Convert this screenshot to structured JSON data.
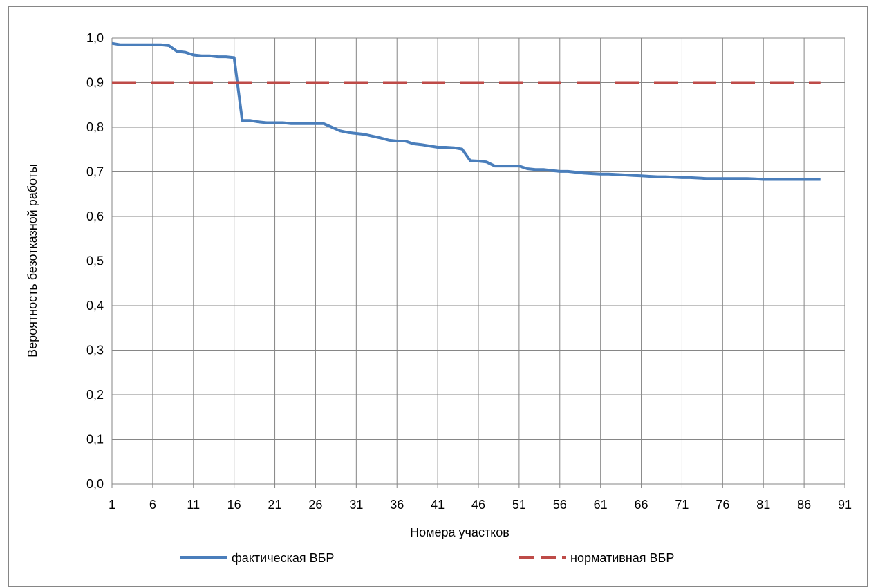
{
  "chart_data": {
    "type": "line",
    "xlabel": "Номера участков",
    "ylabel": "Вероятность безотказной работы",
    "xlim": [
      1,
      91
    ],
    "ylim": [
      0,
      1
    ],
    "grid": true,
    "legend_position": "bottom",
    "x_ticks": [
      "1",
      "6",
      "11",
      "16",
      "21",
      "26",
      "31",
      "36",
      "41",
      "46",
      "51",
      "56",
      "61",
      "66",
      "71",
      "76",
      "81",
      "86",
      "91"
    ],
    "y_ticks": [
      "0,0",
      "0,1",
      "0,2",
      "0,3",
      "0,4",
      "0,5",
      "0,6",
      "0,7",
      "0,8",
      "0,9",
      "1,0"
    ],
    "series": [
      {
        "name": "фактическая ВБР",
        "color": "#4a7ebb",
        "style": "solid",
        "x": [
          1,
          2,
          3,
          4,
          5,
          6,
          7,
          8,
          9,
          10,
          11,
          12,
          13,
          14,
          15,
          16,
          17,
          18,
          19,
          20,
          21,
          22,
          23,
          24,
          25,
          26,
          27,
          28,
          29,
          30,
          31,
          32,
          33,
          34,
          35,
          36,
          37,
          38,
          39,
          40,
          41,
          42,
          43,
          44,
          45,
          46,
          47,
          48,
          49,
          50,
          51,
          52,
          53,
          54,
          55,
          56,
          57,
          58,
          59,
          60,
          61,
          62,
          63,
          64,
          65,
          66,
          67,
          68,
          69,
          70,
          71,
          72,
          73,
          74,
          75,
          76,
          77,
          78,
          79,
          80,
          81,
          82,
          83,
          84,
          85,
          86,
          87,
          88
        ],
        "values": [
          0.988,
          0.985,
          0.985,
          0.985,
          0.985,
          0.985,
          0.985,
          0.983,
          0.97,
          0.968,
          0.962,
          0.96,
          0.96,
          0.958,
          0.958,
          0.956,
          0.815,
          0.815,
          0.812,
          0.81,
          0.81,
          0.81,
          0.808,
          0.808,
          0.808,
          0.808,
          0.808,
          0.8,
          0.792,
          0.788,
          0.786,
          0.784,
          0.78,
          0.776,
          0.771,
          0.769,
          0.769,
          0.763,
          0.761,
          0.758,
          0.755,
          0.755,
          0.754,
          0.751,
          0.725,
          0.724,
          0.722,
          0.713,
          0.713,
          0.713,
          0.713,
          0.707,
          0.705,
          0.705,
          0.703,
          0.701,
          0.701,
          0.699,
          0.697,
          0.696,
          0.695,
          0.695,
          0.694,
          0.693,
          0.692,
          0.691,
          0.69,
          0.689,
          0.689,
          0.688,
          0.687,
          0.687,
          0.686,
          0.685,
          0.685,
          0.685,
          0.685,
          0.685,
          0.685,
          0.684,
          0.683,
          0.683,
          0.683,
          0.683,
          0.683,
          0.683,
          0.683,
          0.683
        ]
      },
      {
        "name": "нормативная ВБР",
        "color": "#be4b48",
        "style": "dashed",
        "x": [
          1,
          88
        ],
        "values": [
          0.9,
          0.9
        ]
      }
    ]
  }
}
